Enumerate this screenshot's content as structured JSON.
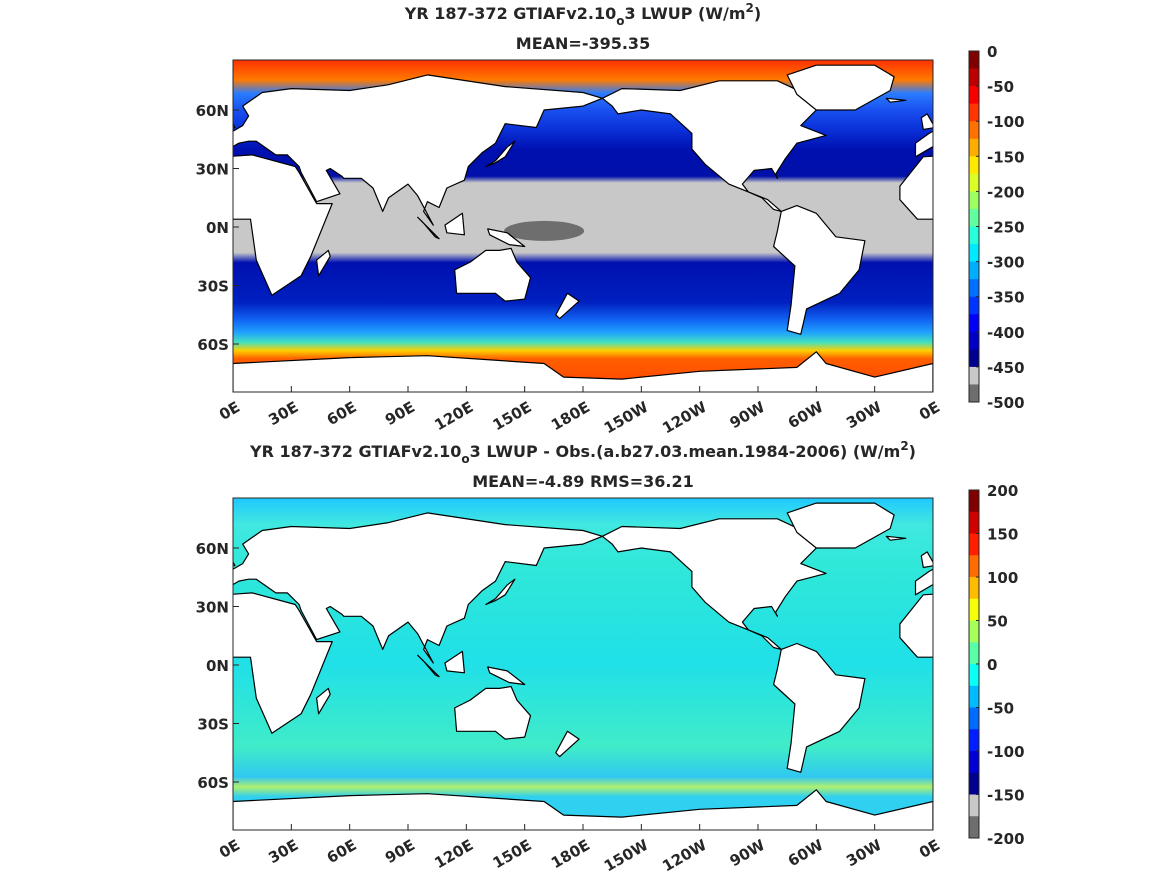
{
  "axes": {
    "lon_labels": [
      "0E",
      "30E",
      "60E",
      "90E",
      "120E",
      "150E",
      "180E",
      "150W",
      "120W",
      "90W",
      "60W",
      "30W",
      "0E"
    ],
    "lat_labels": [
      "60N",
      "30N",
      "0N",
      "30S",
      "60S"
    ]
  },
  "panels": [
    {
      "title_parts": [
        "YR 187-372 GTIAFv2.10",
        "o",
        "3  LWUP (W/m",
        "2",
        ")"
      ],
      "subtitle": "MEAN=-395.35",
      "colorbar": {
        "cmap": "jet",
        "ticks": [
          0,
          -50,
          -100,
          -150,
          -200,
          -250,
          -300,
          -350,
          -400,
          -450,
          -500
        ],
        "below_colors": [
          "#c8c8c8",
          "#6e6e6e"
        ]
      }
    },
    {
      "title_parts": [
        "YR 187-372 GTIAFv2.10",
        "o",
        "3 LWUP - Obs.(a.b27.03.mean.1984-2006) (W/m",
        "2",
        ")"
      ],
      "subtitle": "MEAN=-4.89 RMS=36.21",
      "colorbar": {
        "cmap": "jet",
        "ticks": [
          200,
          150,
          100,
          50,
          0,
          -50,
          -100,
          -150,
          -200
        ],
        "below_colors": [
          "#c8c8c8",
          "#6e6e6e"
        ]
      }
    }
  ]
}
